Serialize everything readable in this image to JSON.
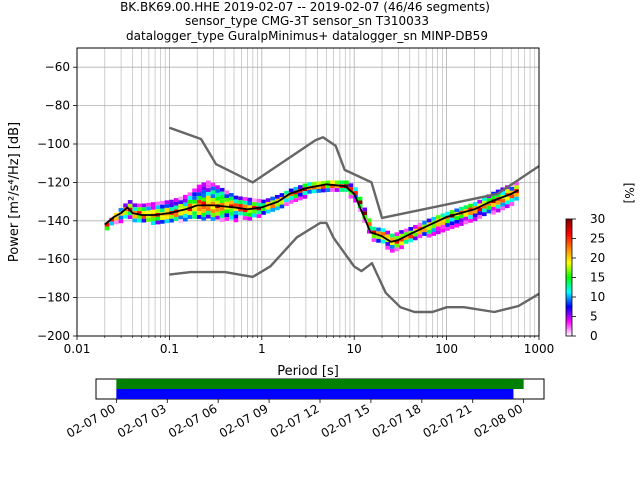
{
  "figure": {
    "title_lines": [
      "BK.BK69.00.HHE   2019-02-07 -- 2019-02-07  (46/46 segments)",
      "sensor_type CMG-3T sensor_sn T310033",
      "datalogger_type GuralpMinimus+ datalogger_sn MINP-DB59"
    ]
  },
  "chart_data": [
    {
      "type": "heatmap",
      "title": "BK.BK69.00.HHE   2019-02-07 -- 2019-02-07  (46/46 segments)",
      "xlabel": "Period [s]",
      "ylabel": "Power [m²/s⁴/Hz] [dB]",
      "xscale": "log",
      "xlim": [
        0.01,
        1000
      ],
      "ylim": [
        -200,
        -50
      ],
      "grid": true,
      "xticks": [
        {
          "value": 0.01,
          "label": "0.01"
        },
        {
          "value": 0.1,
          "label": "0.1"
        },
        {
          "value": 1,
          "label": "1"
        },
        {
          "value": 10,
          "label": "10"
        },
        {
          "value": 100,
          "label": "100"
        },
        {
          "value": 1000,
          "label": "1000"
        }
      ],
      "yticks": [
        {
          "value": -60,
          "label": "−60"
        },
        {
          "value": -80,
          "label": "−80"
        },
        {
          "value": -100,
          "label": "−100"
        },
        {
          "value": -120,
          "label": "−120"
        },
        {
          "value": -140,
          "label": "−140"
        },
        {
          "value": -160,
          "label": "−160"
        },
        {
          "value": -180,
          "label": "−180"
        },
        {
          "value": -200,
          "label": "−200"
        }
      ],
      "colorbar": {
        "label": "[%]",
        "range": [
          0,
          30
        ],
        "ticks": [
          {
            "value": 0,
            "label": "0"
          },
          {
            "value": 5,
            "label": "5"
          },
          {
            "value": 10,
            "label": "10"
          },
          {
            "value": 15,
            "label": "15"
          },
          {
            "value": 20,
            "label": "20"
          },
          {
            "value": 25,
            "label": "25"
          },
          {
            "value": 30,
            "label": "30"
          }
        ],
        "colors": [
          "#ffffff",
          "#ff00ff",
          "#0000ff",
          "#00ffff",
          "#00ff00",
          "#ffff00",
          "#ff8000",
          "#ff0000",
          "#800000"
        ]
      },
      "noise_models": [
        {
          "name": "NHNM",
          "color": "#666666",
          "points": [
            [
              0.1,
              -91.5
            ],
            [
              0.22,
              -97.4
            ],
            [
              0.32,
              -110.5
            ],
            [
              0.8,
              -120
            ],
            [
              3.8,
              -98
            ],
            [
              4.6,
              -96.5
            ],
            [
              6.3,
              -101
            ],
            [
              7.9,
              -113.5
            ],
            [
              15.4,
              -120
            ],
            [
              20,
              -138.5
            ],
            [
              354.8,
              -126
            ],
            [
              1000,
              -111.5
            ]
          ]
        },
        {
          "name": "NLNM",
          "color": "#666666",
          "points": [
            [
              0.1,
              -168
            ],
            [
              0.17,
              -166.7
            ],
            [
              0.4,
              -166.7
            ],
            [
              0.8,
              -169.2
            ],
            [
              1.24,
              -163.7
            ],
            [
              2.4,
              -148.6
            ],
            [
              4.3,
              -141.1
            ],
            [
              5,
              -141.1
            ],
            [
              6,
              -149
            ],
            [
              10,
              -163.8
            ],
            [
              12,
              -166.2
            ],
            [
              15.6,
              -162.1
            ],
            [
              21.9,
              -177.5
            ],
            [
              31.6,
              -185
            ],
            [
              45,
              -187.5
            ],
            [
              70,
              -187.5
            ],
            [
              101,
              -185
            ],
            [
              154,
              -185
            ],
            [
              328,
              -187.5
            ],
            [
              600,
              -184.4
            ],
            [
              1000,
              -178
            ]
          ]
        }
      ],
      "median": {
        "color": "#000000",
        "points": [
          [
            0.02,
            -142
          ],
          [
            0.025,
            -138
          ],
          [
            0.03,
            -136
          ],
          [
            0.035,
            -133
          ],
          [
            0.04,
            -136
          ],
          [
            0.05,
            -137
          ],
          [
            0.07,
            -137
          ],
          [
            0.1,
            -136
          ],
          [
            0.15,
            -134
          ],
          [
            0.2,
            -132
          ],
          [
            0.3,
            -132
          ],
          [
            0.5,
            -133
          ],
          [
            0.7,
            -134
          ],
          [
            1,
            -133
          ],
          [
            1.5,
            -130
          ],
          [
            2,
            -126
          ],
          [
            3,
            -123
          ],
          [
            5,
            -121
          ],
          [
            8,
            -122
          ],
          [
            10,
            -126
          ],
          [
            15,
            -146
          ],
          [
            20,
            -148
          ],
          [
            25,
            -151
          ],
          [
            30,
            -150
          ],
          [
            40,
            -147
          ],
          [
            60,
            -143
          ],
          [
            100,
            -138
          ],
          [
            200,
            -134
          ],
          [
            300,
            -130
          ],
          [
            500,
            -126
          ],
          [
            600,
            -124
          ]
        ]
      },
      "envelope": {
        "periods": [
          0.02,
          0.025,
          0.03,
          0.035,
          0.04,
          0.05,
          0.07,
          0.1,
          0.15,
          0.2,
          0.25,
          0.3,
          0.5,
          0.7,
          1,
          1.5,
          2,
          3,
          5,
          8,
          10,
          15,
          20,
          25,
          30,
          40,
          60,
          100,
          200,
          300,
          500,
          600
        ],
        "upper": [
          -141,
          -136,
          -132,
          -129,
          -131,
          -131,
          -130,
          -129,
          -126,
          -121,
          -119,
          -121,
          -127,
          -128,
          -129,
          -126,
          -123,
          -120,
          -119,
          -119,
          -123,
          -143,
          -144,
          -147,
          -145,
          -143,
          -139,
          -135,
          -130,
          -125,
          -120,
          -119
        ],
        "lower": [
          -143,
          -141,
          -139,
          -138,
          -140,
          -140,
          -141,
          -140,
          -139,
          -138,
          -138,
          -139,
          -139,
          -138,
          -136,
          -133,
          -129,
          -126,
          -124,
          -125,
          -129,
          -149,
          -152,
          -155,
          -153,
          -150,
          -147,
          -143,
          -139,
          -135,
          -130,
          -128
        ]
      }
    },
    {
      "type": "timeline",
      "xticks": [
        "02-07 00",
        "02-07 03",
        "02-07 06",
        "02-07 09",
        "02-07 12",
        "02-07 15",
        "02-07 18",
        "02-07 21",
        "02-08 00"
      ],
      "xlim_hours": [
        -1.2,
        25.2
      ],
      "bars": [
        {
          "color": "#008000",
          "start_hour": 0,
          "end_hour": 24.0
        },
        {
          "color": "#0000ff",
          "start_hour": 0,
          "end_hour": 23.4
        }
      ]
    }
  ]
}
